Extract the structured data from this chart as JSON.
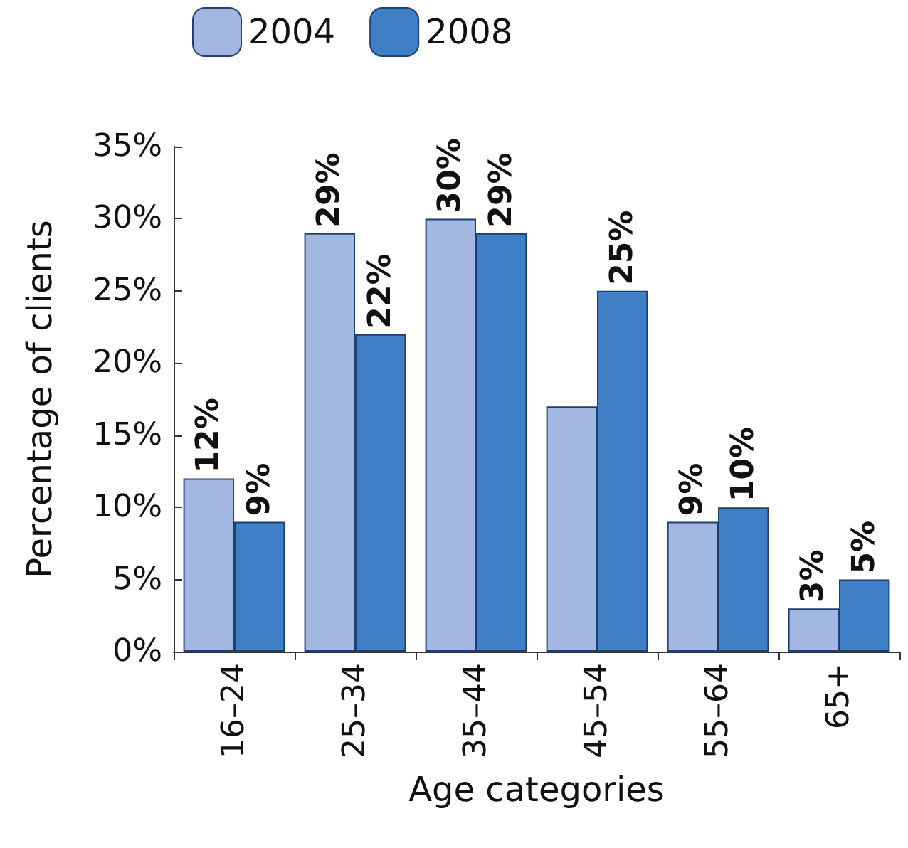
{
  "chart_data": {
    "type": "bar",
    "xlabel": "Age categories",
    "ylabel": "Percentage of clients",
    "categories": [
      "16–24",
      "25–34",
      "35–44",
      "45–54",
      "55–64",
      "65+"
    ],
    "series": [
      {
        "name": "2004",
        "color": "#a3b8e0",
        "values": [
          12,
          29,
          30,
          17,
          9,
          3
        ],
        "value_labels": [
          "12%",
          "29%",
          "30%",
          null,
          "9%",
          "3%"
        ]
      },
      {
        "name": "2008",
        "color": "#3f7fc6",
        "values": [
          9,
          22,
          29,
          25,
          10,
          5
        ],
        "value_labels": [
          "9%",
          "22%",
          "29%",
          "25%",
          "10%",
          "5%"
        ]
      }
    ],
    "ylim": [
      0,
      35
    ],
    "yticks": [
      {
        "value": 0,
        "label": "0%"
      },
      {
        "value": 5,
        "label": "5%"
      },
      {
        "value": 10,
        "label": "10%"
      },
      {
        "value": 15,
        "label": "15%"
      },
      {
        "value": 20,
        "label": "20%"
      },
      {
        "value": 25,
        "label": "25%"
      },
      {
        "value": 30,
        "label": "30%"
      },
      {
        "value": 35,
        "label": "35%"
      }
    ],
    "grid": false,
    "legend": "top"
  }
}
